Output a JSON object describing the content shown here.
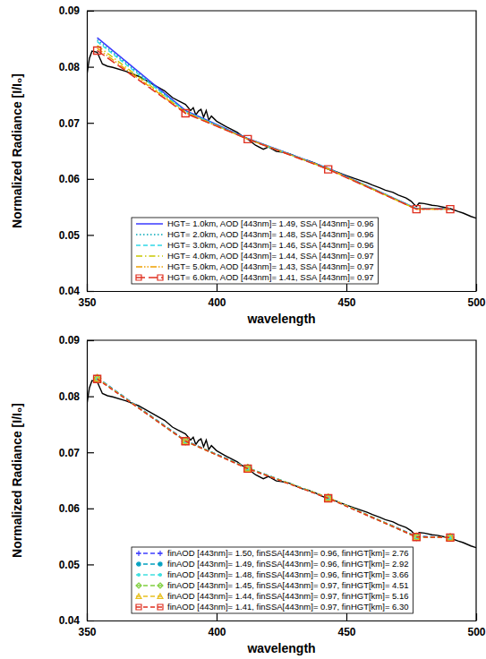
{
  "chart_data": [
    {
      "type": "line",
      "xlabel": "wavelength",
      "ylabel": "Normalized Radiance [I/I₀]",
      "xlim": [
        350,
        500
      ],
      "xticks": [
        350,
        400,
        450,
        500
      ],
      "ylim": [
        0.04,
        0.09
      ],
      "yticks": [
        0.04,
        0.05,
        0.06,
        0.07,
        0.08,
        0.09
      ],
      "legend": "lower left",
      "series": [
        {
          "color": "#000000",
          "line_style": "solid",
          "x": [
            350,
            351,
            352,
            354,
            356,
            358,
            360,
            365,
            370,
            375,
            380,
            383,
            385,
            388,
            390,
            391,
            392,
            393,
            394,
            395,
            396,
            397,
            398,
            400,
            403,
            405,
            408,
            410,
            412,
            415,
            418,
            420,
            423,
            425,
            428,
            430,
            433,
            435,
            438,
            440,
            443,
            446,
            450,
            453,
            455,
            458,
            460,
            463,
            465,
            468,
            470,
            473,
            475,
            476,
            477,
            478,
            480,
            483,
            485,
            488,
            490,
            493,
            495,
            498,
            500
          ],
          "values": [
            0.0785,
            0.0815,
            0.0828,
            0.0826,
            0.0805,
            0.0801,
            0.0799,
            0.0792,
            0.0783,
            0.077,
            0.0757,
            0.0745,
            0.074,
            0.0733,
            0.0722,
            0.0727,
            0.0714,
            0.0721,
            0.0724,
            0.071,
            0.0722,
            0.0705,
            0.0712,
            0.0703,
            0.0695,
            0.069,
            0.0683,
            0.0676,
            0.0671,
            0.066,
            0.0653,
            0.0657,
            0.0649,
            0.0648,
            0.0645,
            0.0641,
            0.0635,
            0.0633,
            0.0628,
            0.0623,
            0.0617,
            0.0613,
            0.0606,
            0.0601,
            0.0598,
            0.0593,
            0.0589,
            0.0584,
            0.058,
            0.0576,
            0.0571,
            0.0566,
            0.056,
            0.0555,
            0.0551,
            0.0557,
            0.0556,
            0.0553,
            0.0552,
            0.0549,
            0.0547,
            0.0542,
            0.0539,
            0.0533,
            0.053
          ]
        },
        {
          "name": "HGT= 1.0km, AOD [443nm]= 1.49, SSA [443nm]= 0.96",
          "color": "#3a3aff",
          "line_style": "solid",
          "x": [
            354,
            388,
            412,
            443,
            477,
            490
          ],
          "values": [
            0.0852,
            0.0722,
            0.0672,
            0.0619,
            0.0547,
            0.0547
          ]
        },
        {
          "name": "HGT= 2.0km, AOD [443nm]= 1.48, SSA [443nm]= 0.96",
          "color": "#00a8b8",
          "line_style": "dotted",
          "x": [
            354,
            388,
            412,
            443,
            477,
            490
          ],
          "values": [
            0.0848,
            0.0721,
            0.0672,
            0.0619,
            0.0547,
            0.0547
          ]
        },
        {
          "name": "HGT= 3.0km, AOD [443nm]= 1.46, SSA [443nm]= 0.96",
          "color": "#30d8e8",
          "line_style": "dashed",
          "x": [
            354,
            388,
            412,
            443,
            477,
            490
          ],
          "values": [
            0.0845,
            0.072,
            0.0671,
            0.0618,
            0.0547,
            0.0546
          ]
        },
        {
          "name": "HGT= 4.0km, AOD [443nm]= 1.44, SSA [443nm]= 0.97",
          "color": "#c8c800",
          "line_style": "dashdot",
          "x": [
            354,
            388,
            412,
            443,
            477,
            490
          ],
          "values": [
            0.0838,
            0.0719,
            0.0671,
            0.0618,
            0.0546,
            0.0546
          ]
        },
        {
          "name": "HGT= 5.0km, AOD [443nm]= 1.43, SSA [443nm]= 0.97",
          "color": "#f0a000",
          "line_style": "dashdotdot",
          "x": [
            354,
            388,
            412,
            443,
            477,
            490
          ],
          "values": [
            0.0833,
            0.0718,
            0.0671,
            0.0618,
            0.0546,
            0.0546
          ]
        },
        {
          "name": "HGT= 6.0km, AOD [443nm]= 1.41, SSA [443nm]= 0.97",
          "color": "#e03020",
          "line_style": "longdash",
          "marker": "square",
          "x": [
            354,
            388,
            412,
            443,
            477,
            490
          ],
          "values": [
            0.0829,
            0.0717,
            0.0671,
            0.0617,
            0.0546,
            0.0546
          ]
        }
      ]
    },
    {
      "type": "line",
      "xlabel": "wavelength",
      "ylabel": "Normalized Radiance [I/I₀]",
      "xlim": [
        350,
        500
      ],
      "xticks": [
        350,
        400,
        450,
        500
      ],
      "ylim": [
        0.04,
        0.09
      ],
      "yticks": [
        0.04,
        0.05,
        0.06,
        0.07,
        0.08,
        0.09
      ],
      "legend": "lower left",
      "series": [
        {
          "color": "#000000",
          "line_style": "solid",
          "x": [
            350,
            351,
            352,
            354,
            356,
            358,
            360,
            365,
            370,
            375,
            380,
            383,
            385,
            388,
            390,
            391,
            392,
            393,
            394,
            395,
            396,
            397,
            398,
            400,
            403,
            405,
            408,
            410,
            412,
            415,
            418,
            420,
            423,
            425,
            428,
            430,
            433,
            435,
            438,
            440,
            443,
            446,
            450,
            453,
            455,
            458,
            460,
            463,
            465,
            468,
            470,
            473,
            475,
            476,
            477,
            478,
            480,
            483,
            485,
            488,
            490,
            493,
            495,
            498,
            500
          ],
          "values": [
            0.0785,
            0.0815,
            0.0828,
            0.0826,
            0.0805,
            0.0801,
            0.0799,
            0.0792,
            0.0783,
            0.077,
            0.0757,
            0.0745,
            0.074,
            0.0733,
            0.0722,
            0.0727,
            0.0714,
            0.0721,
            0.0724,
            0.071,
            0.0722,
            0.0705,
            0.0712,
            0.0703,
            0.0695,
            0.069,
            0.0683,
            0.0676,
            0.0671,
            0.066,
            0.0653,
            0.0657,
            0.0649,
            0.0648,
            0.0645,
            0.0641,
            0.0635,
            0.0633,
            0.0628,
            0.0623,
            0.0617,
            0.0613,
            0.0606,
            0.0601,
            0.0598,
            0.0593,
            0.0589,
            0.0584,
            0.058,
            0.0576,
            0.0571,
            0.0566,
            0.056,
            0.0555,
            0.0551,
            0.0557,
            0.0556,
            0.0553,
            0.0552,
            0.0549,
            0.0547,
            0.0542,
            0.0539,
            0.0533,
            0.053
          ]
        },
        {
          "name": "finAOD [443nm]= 1.50, finSSA[443nm]= 0.96, finHGT[km]= 2.76",
          "color": "#4040ff",
          "line_style": "dashed",
          "marker": "plus",
          "x": [
            354,
            388,
            412,
            443,
            477,
            490
          ],
          "values": [
            0.0833,
            0.0721,
            0.0672,
            0.0619,
            0.055,
            0.0548
          ]
        },
        {
          "name": "finAOD [443nm]= 1.49, finSSA[443nm]= 0.96, finHGT[km]= 2.92",
          "color": "#00a0c0",
          "line_style": "dashed",
          "marker": "asterisk",
          "x": [
            354,
            388,
            412,
            443,
            477,
            490
          ],
          "values": [
            0.0833,
            0.0721,
            0.0672,
            0.0619,
            0.055,
            0.0548
          ]
        },
        {
          "name": "finAOD [443nm]= 1.48, finSSA[443nm]= 0.96, finHGT[km]= 3.66",
          "color": "#40e0e0",
          "line_style": "dashed",
          "marker": "dot",
          "x": [
            354,
            388,
            412,
            443,
            477,
            490
          ],
          "values": [
            0.0832,
            0.072,
            0.0672,
            0.0619,
            0.0549,
            0.0548
          ]
        },
        {
          "name": "finAOD [443nm]= 1.45, finSSA[443nm]= 0.97, finHGT[km]= 4.51",
          "color": "#80d040",
          "line_style": "dashed",
          "marker": "diamond",
          "x": [
            354,
            388,
            412,
            443,
            477,
            490
          ],
          "values": [
            0.0832,
            0.072,
            0.0672,
            0.0619,
            0.0549,
            0.0548
          ]
        },
        {
          "name": "finAOD [443nm]= 1.44, finSSA[443nm]= 0.97, finHGT[km]= 5.16",
          "color": "#e8c020",
          "line_style": "dashed",
          "marker": "triangle",
          "x": [
            354,
            388,
            412,
            443,
            477,
            490
          ],
          "values": [
            0.0832,
            0.072,
            0.0671,
            0.0619,
            0.0549,
            0.0548
          ]
        },
        {
          "name": "finAOD [443nm]= 1.41, finSSA[443nm]= 0.97, finHGT[km]= 6.30",
          "color": "#e03020",
          "line_style": "dashed",
          "marker": "square",
          "x": [
            354,
            388,
            412,
            443,
            477,
            490
          ],
          "values": [
            0.0831,
            0.072,
            0.0671,
            0.0618,
            0.0549,
            0.0548
          ]
        }
      ]
    }
  ]
}
